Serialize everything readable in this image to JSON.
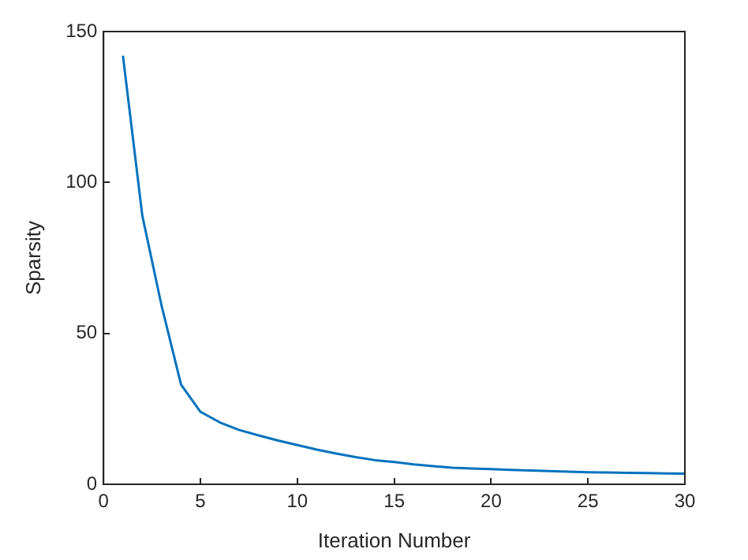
{
  "chart_data": {
    "type": "line",
    "xlabel": "Iteration Number",
    "ylabel": "Sparsity",
    "x": [
      1,
      2,
      3,
      4,
      5,
      6,
      7,
      8,
      9,
      10,
      11,
      12,
      13,
      14,
      15,
      16,
      17,
      18,
      19,
      20,
      21,
      22,
      23,
      24,
      25,
      26,
      27,
      28,
      29,
      30
    ],
    "series": [
      {
        "color": "#0072bd",
        "values": [
          142,
          89,
          59,
          33,
          24,
          20.5,
          18,
          16.2,
          14.5,
          13,
          11.5,
          10.2,
          9,
          8,
          7.4,
          6.6,
          6,
          5.5,
          5.2,
          5,
          4.8,
          4.6,
          4.4,
          4.2,
          4,
          3.9,
          3.8,
          3.7,
          3.6,
          3.5
        ]
      }
    ],
    "xlim": [
      0,
      30
    ],
    "xticks": [
      0,
      5,
      10,
      15,
      20,
      25,
      30
    ],
    "ylim": [
      0,
      150
    ],
    "yticks": [
      0,
      50,
      100,
      150
    ],
    "grid": false,
    "legend": false,
    "marker": "none",
    "line_style": "solid"
  }
}
